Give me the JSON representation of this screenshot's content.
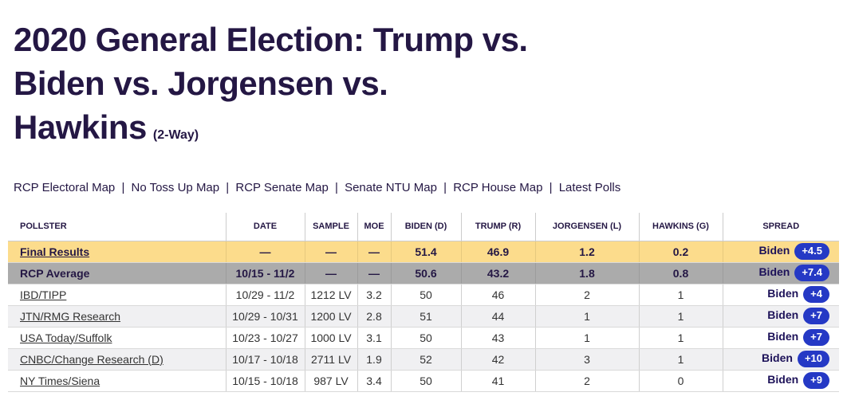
{
  "title": {
    "line1": "2020 General Election: Trump vs.",
    "line2": "Biden vs. Jorgensen vs.",
    "line3": "Hawkins",
    "suffix": "(2-Way)"
  },
  "nav": {
    "separator": "|",
    "links": [
      "RCP Electoral Map",
      "No Toss Up Map",
      "RCP Senate Map",
      "Senate NTU Map",
      "RCP House Map",
      "Latest Polls"
    ]
  },
  "table": {
    "columns": [
      "POLLSTER",
      "DATE",
      "SAMPLE",
      "MOE",
      "BIDEN (D)",
      "TRUMP (R)",
      "JORGENSEN (L)",
      "HAWKINS (G)",
      "SPREAD"
    ],
    "rows": [
      {
        "pollster": "Final Results",
        "link": true,
        "variant": "final",
        "date": "—",
        "sample": "—",
        "moe": "—",
        "biden": "51.4",
        "trump": "46.9",
        "jorgensen": "1.2",
        "hawkins": "0.2",
        "spread_leader": "Biden",
        "spread_value": "+4.5"
      },
      {
        "pollster": "RCP Average",
        "link": false,
        "variant": "average",
        "date": "10/15 - 11/2",
        "sample": "—",
        "moe": "—",
        "biden": "50.6",
        "trump": "43.2",
        "jorgensen": "1.8",
        "hawkins": "0.8",
        "spread_leader": "Biden",
        "spread_value": "+7.4"
      },
      {
        "pollster": "IBD/TIPP",
        "link": true,
        "variant": "white",
        "date": "10/29 - 11/2",
        "sample": "1212 LV",
        "moe": "3.2",
        "biden": "50",
        "trump": "46",
        "jorgensen": "2",
        "hawkins": "1",
        "spread_leader": "Biden",
        "spread_value": "+4"
      },
      {
        "pollster": "JTN/RMG Research",
        "link": true,
        "variant": "shaded",
        "date": "10/29 - 10/31",
        "sample": "1200 LV",
        "moe": "2.8",
        "biden": "51",
        "trump": "44",
        "jorgensen": "1",
        "hawkins": "1",
        "spread_leader": "Biden",
        "spread_value": "+7"
      },
      {
        "pollster": "USA Today/Suffolk",
        "link": true,
        "variant": "white",
        "date": "10/23 - 10/27",
        "sample": "1000 LV",
        "moe": "3.1",
        "biden": "50",
        "trump": "43",
        "jorgensen": "1",
        "hawkins": "1",
        "spread_leader": "Biden",
        "spread_value": "+7"
      },
      {
        "pollster": "CNBC/Change Research (D)",
        "link": true,
        "variant": "shaded",
        "date": "10/17 - 10/18",
        "sample": "2711 LV",
        "moe": "1.9",
        "biden": "52",
        "trump": "42",
        "jorgensen": "3",
        "hawkins": "1",
        "spread_leader": "Biden",
        "spread_value": "+10"
      },
      {
        "pollster": "NY Times/Siena",
        "link": true,
        "variant": "white",
        "date": "10/15 - 10/18",
        "sample": "987 LV",
        "moe": "3.4",
        "biden": "50",
        "trump": "41",
        "jorgensen": "2",
        "hawkins": "0",
        "spread_leader": "Biden",
        "spread_value": "+9"
      }
    ]
  },
  "colors": {
    "title_text": "#241744",
    "final_row_bg": "#FCDC8C",
    "average_row_bg": "#ABABAB",
    "shaded_row_bg": "#F0F0F2",
    "spread_pill_bg": "#2539C5",
    "spread_pill_text": "#FFFFFF"
  }
}
